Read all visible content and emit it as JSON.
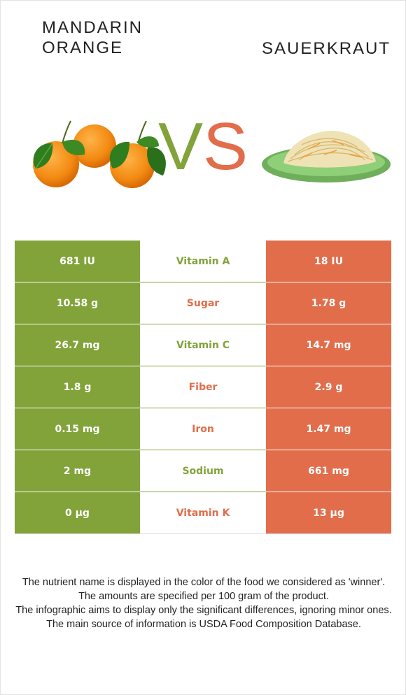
{
  "foods": {
    "left": {
      "name_line1": "MANDARIN",
      "name_line2": "ORANGE",
      "color": "#82a33a"
    },
    "right": {
      "name": "SAUERKRAUT",
      "color": "#e26d4b"
    }
  },
  "vs": {
    "v": "V",
    "s": "S"
  },
  "colors": {
    "winner_left": "#82a33a",
    "winner_right": "#e26d4b",
    "text_dark": "#222222"
  },
  "nutrients": [
    {
      "left": "681 IU",
      "name": "Vitamin A",
      "right": "18 IU",
      "winner": "left"
    },
    {
      "left": "10.58 g",
      "name": "Sugar",
      "right": "1.78 g",
      "winner": "right"
    },
    {
      "left": "26.7 mg",
      "name": "Vitamin C",
      "right": "14.7 mg",
      "winner": "left"
    },
    {
      "left": "1.8 g",
      "name": "Fiber",
      "right": "2.9 g",
      "winner": "right"
    },
    {
      "left": "0.15 mg",
      "name": "Iron",
      "right": "1.47 mg",
      "winner": "right"
    },
    {
      "left": "2 mg",
      "name": "Sodium",
      "right": "661 mg",
      "winner": "left"
    },
    {
      "left": "0 µg",
      "name": "Vitamin K",
      "right": "13 µg",
      "winner": "right"
    }
  ],
  "footnotes": [
    "The nutrient name is displayed in the color of the food we considered as 'winner'.",
    "The amounts are specified per 100 gram of the product.",
    "The infographic aims to display only the significant differences, ignoring minor ones.",
    "The main source of information is USDA Food Composition Database."
  ]
}
